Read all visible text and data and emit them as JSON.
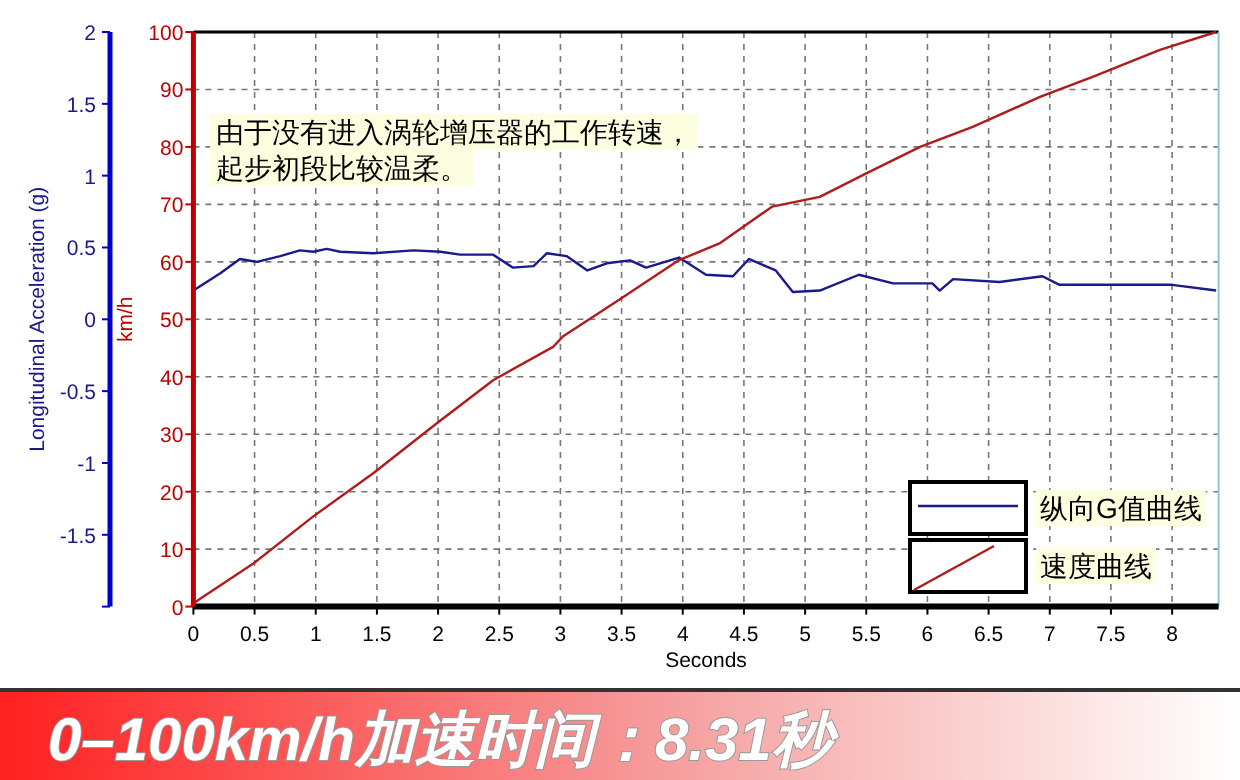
{
  "chart_data": {
    "type": "line",
    "title": "0–100km/h加速时间：8.31秒",
    "xlabel": "Seconds",
    "ylabel": "Longitudinal Acceleration (g)",
    "y2label": "km/h",
    "annotations": [
      "由于没有进入涡轮增压器的工作转速，",
      "起步初段比较温柔。"
    ],
    "xlim": [
      0,
      8.38
    ],
    "xticks": [
      0,
      0.5,
      1,
      1.5,
      2,
      2.5,
      3,
      3.5,
      4,
      4.5,
      5,
      5.5,
      6,
      6.5,
      7,
      7.5,
      8
    ],
    "ylim": [
      -2,
      2
    ],
    "yticks": [
      {
        "value": -2,
        "label": null
      },
      -1.5,
      -1,
      -0.5,
      0,
      0.5,
      1,
      1.5,
      2
    ],
    "y2lim": [
      0,
      100
    ],
    "y2ticks": [
      0,
      10,
      20,
      30,
      40,
      50,
      60,
      70,
      80,
      90,
      100
    ],
    "grid": true,
    "legend": "bottom right",
    "series": [
      {
        "name": "纵向G值曲线",
        "color": "#1a1a8c",
        "x": [
          0,
          0.22,
          0.38,
          0.52,
          0.71,
          0.87,
          0.98,
          1.09,
          1.2,
          1.47,
          1.8,
          2.02,
          2.18,
          2.45,
          2.61,
          2.78,
          2.89,
          3.05,
          3.22,
          3.38,
          3.57,
          3.7,
          3.97,
          4.19,
          4.41,
          4.54,
          4.76,
          4.9,
          5.12,
          5.44,
          5.72,
          6.04,
          6.1,
          6.21,
          6.59,
          6.94,
          7.08,
          7.57,
          8.0,
          8.36
        ],
        "values": [
          0.2,
          0.32,
          0.42,
          0.4,
          0.44,
          0.48,
          0.47,
          0.49,
          0.47,
          0.46,
          0.48,
          0.47,
          0.45,
          0.45,
          0.36,
          0.37,
          0.46,
          0.44,
          0.34,
          0.39,
          0.41,
          0.36,
          0.43,
          0.31,
          0.3,
          0.42,
          0.34,
          0.19,
          0.2,
          0.31,
          0.25,
          0.25,
          0.2,
          0.28,
          0.26,
          0.3,
          0.24,
          0.24,
          0.24,
          0.2
        ]
      },
      {
        "name": "速度曲线",
        "color": "#b01c1c",
        "axis": "y2",
        "x": [
          0,
          0.49,
          0.98,
          1.47,
          1.99,
          2.45,
          2.94,
          3.02,
          3.48,
          3.97,
          4.3,
          4.73,
          5.12,
          5.5,
          5.94,
          6.37,
          6.92,
          7.35,
          7.9,
          8.36
        ],
        "values": [
          0.6,
          7.5,
          15.7,
          23.2,
          31.9,
          39.4,
          45.2,
          47,
          53.4,
          60.3,
          63.2,
          69.6,
          71.3,
          75.4,
          80,
          83.5,
          88.7,
          92.2,
          96.9,
          100
        ]
      }
    ]
  }
}
